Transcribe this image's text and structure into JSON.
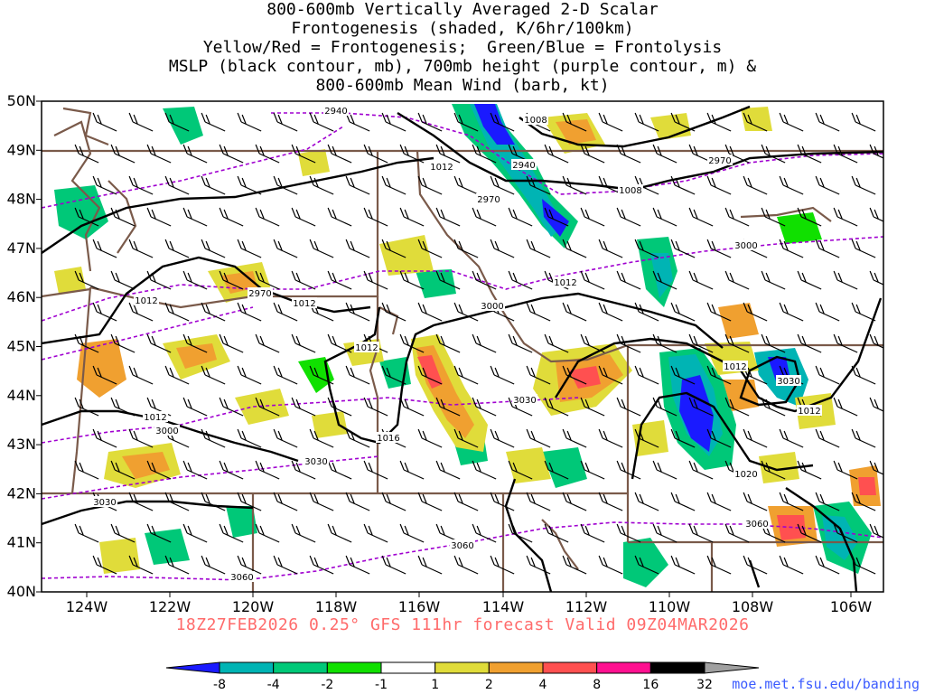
{
  "title": {
    "line1": "800-600mb Vertically Averaged 2-D Scalar",
    "line2": "Frontogenesis (shaded, K/6hr/100km)",
    "line3": "Yellow/Red = Frontogenesis;  Green/Blue = Frontolysis",
    "line4": "MSLP (black contour, mb), 700mb height (purple contour, m) &",
    "line5": "800-600mb Mean Wind (barb, kt)"
  },
  "lat_labels": [
    "50N",
    "49N",
    "48N",
    "47N",
    "46N",
    "45N",
    "44N",
    "43N",
    "42N",
    "41N",
    "40N"
  ],
  "lon_labels": [
    "124W",
    "122W",
    "120W",
    "118W",
    "116W",
    "114W",
    "112W",
    "110W",
    "108W",
    "106W"
  ],
  "valid_line": "18Z27FEB2026 0.25° GFS 111hr forecast Valid 09Z04MAR2026",
  "credit": "moe.met.fsu.edu/banding",
  "colorbar": {
    "labels": [
      "-8",
      "-4",
      "-2",
      "-1",
      "1",
      "2",
      "4",
      "8",
      "16",
      "32"
    ],
    "colors": [
      "#1a1aff",
      "#00b4b4",
      "#00c878",
      "#10e000",
      "#ffffff",
      "#e0dc3a",
      "#f0a030",
      "#ff5050",
      "#ff1090",
      "#000000",
      "#a0a0a0"
    ]
  },
  "pressure_labels": [
    "1008",
    "1008",
    "1012",
    "1012",
    "1012",
    "1012",
    "1012",
    "1012",
    "1012",
    "1012",
    "1016",
    "1020"
  ],
  "height_labels": [
    "2940",
    "2940",
    "2970",
    "2970",
    "2970",
    "3000",
    "3000",
    "3000",
    "3030",
    "3030",
    "3030",
    "3030",
    "3060",
    "3060",
    "3060"
  ],
  "colors": {
    "pressure": "#000000",
    "height": "#a000d0",
    "borders": "#7a5a4a",
    "frontolysis_strong": "#1a1aff",
    "frontolysis": "#00c878",
    "frontogenesis": "#e0dc3a",
    "frontogenesis_strong": "#f0a030",
    "frontogenesis_max": "#ff5050"
  }
}
